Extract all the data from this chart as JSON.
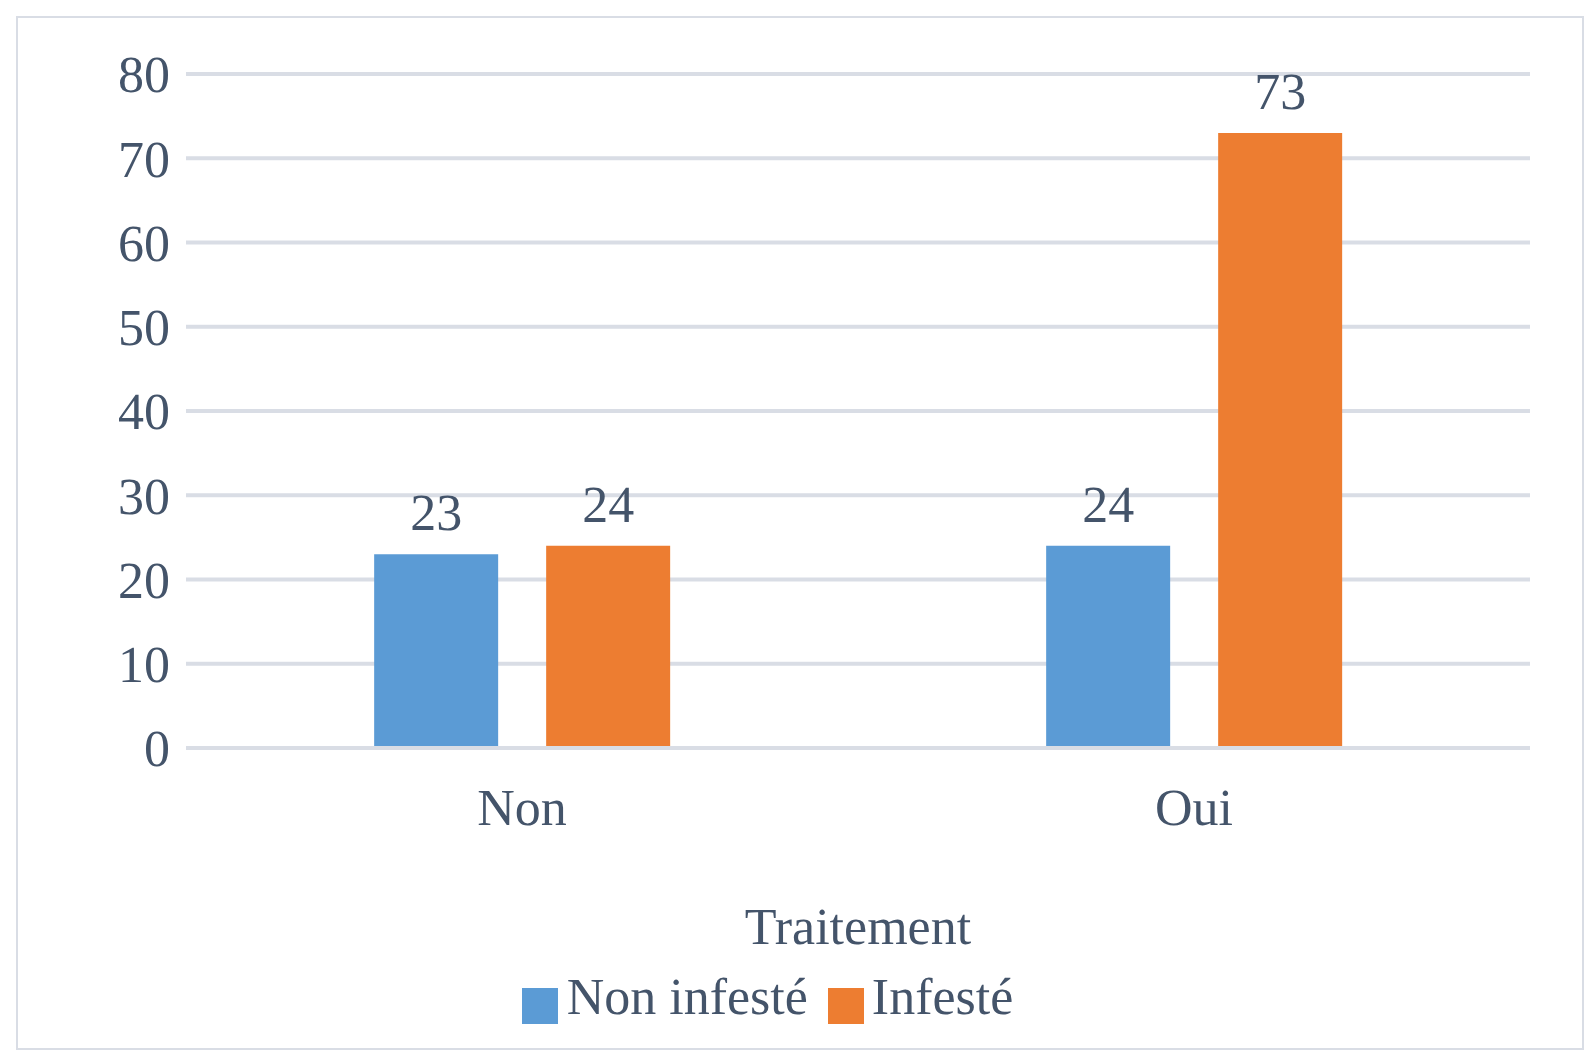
{
  "chart_data": {
    "type": "bar",
    "xlabel": "Traitement",
    "categories": [
      "Non",
      "Oui"
    ],
    "series": [
      {
        "name": "Non infesté",
        "color": "#5b9bd5",
        "values": [
          23,
          24
        ]
      },
      {
        "name": "Infesté",
        "color": "#ed7d31",
        "values": [
          24,
          73
        ]
      }
    ],
    "ylim": [
      0,
      80
    ],
    "yticks": [
      0,
      10,
      20,
      30,
      40,
      50,
      60,
      70,
      80
    ],
    "grid": "y",
    "legend": "bottom",
    "data_labels": true
  }
}
